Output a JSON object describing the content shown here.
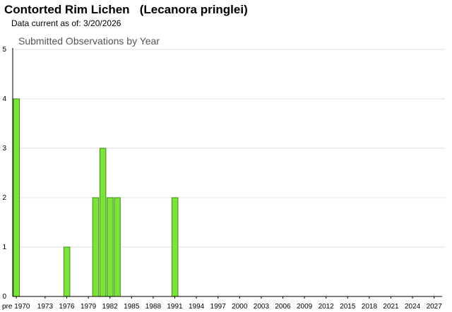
{
  "header": {
    "title": "Contorted Rim Lichen   (Lecanora pringlei)",
    "subtitle": "Data current as of: 3/20/2026"
  },
  "chart_data": {
    "type": "bar",
    "title": "Submitted Observations by Year",
    "xlabel": "",
    "ylabel": "",
    "ylim": [
      0,
      5
    ],
    "yticks": [
      0,
      1,
      2,
      3,
      4,
      5
    ],
    "grid": true,
    "bar_color": "#7CE33A",
    "bar_edge_color": "#3E8E14",
    "categories": [
      "pre 1970",
      "1976",
      "1980",
      "1981",
      "1982",
      "1983",
      "1991"
    ],
    "values": [
      4,
      1,
      2,
      3,
      2,
      2,
      2
    ],
    "x_tick_labels": [
      "pre 1970",
      "1973",
      "1976",
      "1979",
      "1982",
      "1985",
      "1988",
      "1991",
      "1994",
      "1997",
      "2000",
      "2003",
      "2006",
      "2009",
      "2012",
      "2015",
      "2018",
      "2021",
      "2024",
      "2027"
    ]
  }
}
